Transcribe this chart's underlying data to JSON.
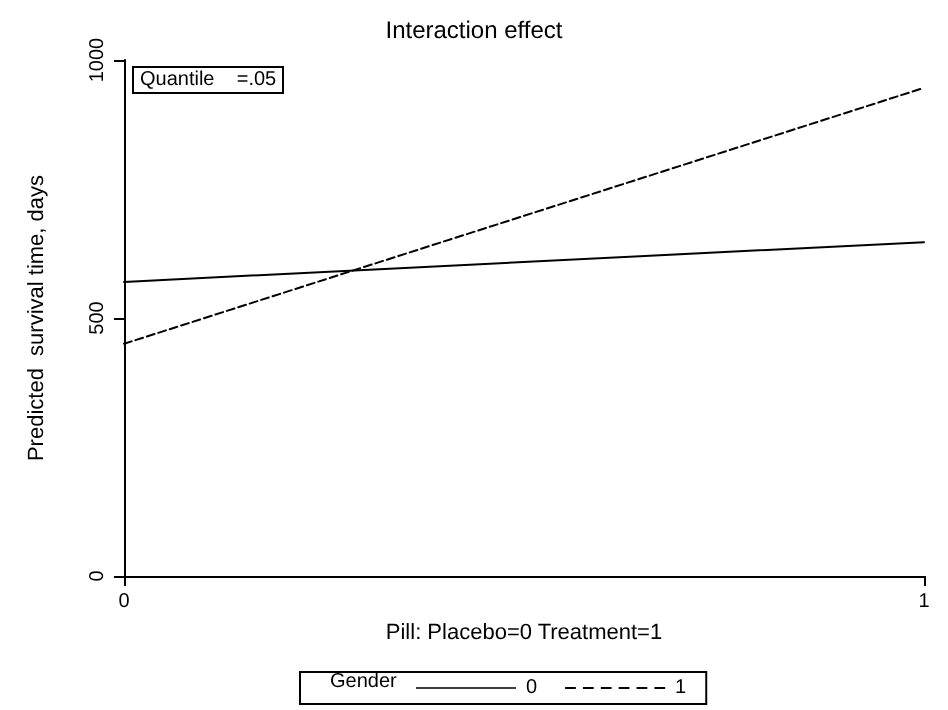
{
  "chart_data": {
    "type": "line",
    "title": "Interaction effect",
    "xlabel": "Pill: Placebo=0 Treatment=1",
    "ylabel": "Predicted  survival time, days",
    "legend_title": "Gender",
    "annotations": [
      "Quantile    =.05"
    ],
    "x": [
      0,
      1
    ],
    "xlim": [
      0,
      1
    ],
    "xticks": [
      0,
      1
    ],
    "ylim": [
      0,
      1000
    ],
    "yticks": [
      0,
      500,
      1000
    ],
    "series": [
      {
        "name": "0",
        "color": "#000000",
        "line_style": "solid",
        "values": [
          570,
          647
        ]
      },
      {
        "name": "1",
        "color": "#000000",
        "line_style": "dashed",
        "values": [
          450,
          946
        ]
      }
    ],
    "marker": "none",
    "grid": false,
    "legend": "bottom"
  }
}
